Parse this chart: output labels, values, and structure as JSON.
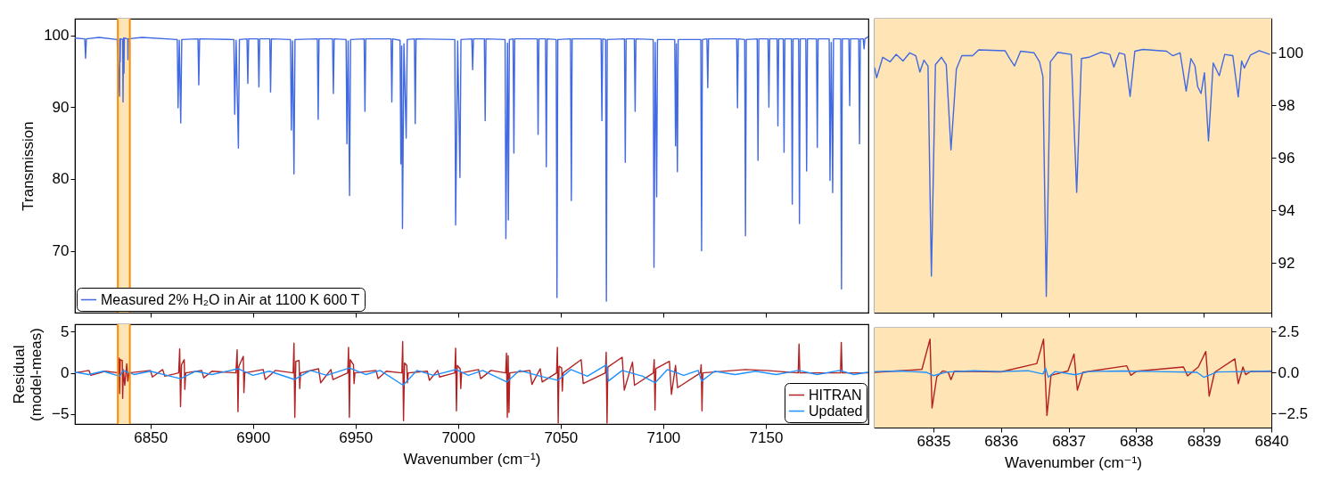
{
  "chart_data": [
    {
      "type": "line",
      "ylabel": "Transmission",
      "xlim": [
        6813.2,
        7200
      ],
      "ylim": [
        61.4,
        102.3
      ],
      "xticks": [
        6850,
        6900,
        6950,
        7000,
        7050,
        7100,
        7150
      ],
      "yticks": [
        70,
        80,
        90,
        100
      ],
      "tick_labels": "y",
      "legend": "bottom left",
      "bands": [
        {
          "axis": "x",
          "from": 6834.13,
          "to": 6840,
          "color": "#ffe4b5"
        }
      ],
      "ref_lines": [
        {
          "axis": "x",
          "value": 6834.13,
          "color": "#ff8c00"
        },
        {
          "axis": "x",
          "value": 6840,
          "color": "#ff8c00"
        }
      ],
      "series": [
        {
          "name": "Measured 2% H₂O in Air at 1100 K 600 T",
          "color": "#4169e1",
          "x": [
            6813.2,
            6818.0,
            6818.4,
            6818.8,
            6825.0,
            6833.8,
            6834.97,
            6835.1,
            6835.26,
            6835.4,
            6836.5,
            6836.67,
            6836.9,
            6837.12,
            6837.3,
            6839.0,
            6839.07,
            6839.2,
            6846.0,
            6863.1,
            6863.5,
            6864.1,
            6864.8,
            6865.3,
            6873.2,
            6873.6,
            6874.0,
            6890.7,
            6891.1,
            6891.8,
            6892.9,
            6893.4,
            6897.1,
            6897.5,
            6897.9,
            6902.5,
            6902.9,
            6903.3,
            6908.2,
            6908.6,
            6909.0,
            6918.3,
            6918.7,
            6919.3,
            6920.0,
            6920.5,
            6931.4,
            6931.8,
            6932.2,
            6938.8,
            6939.2,
            6939.6,
            6945.4,
            6945.8,
            6946.4,
            6947.1,
            6947.6,
            6954.2,
            6954.6,
            6955.0,
            6967.3,
            6967.7,
            6968.1,
            6971.7,
            6972.1,
            6972.5,
            6972.9,
            6973.6,
            6974.7,
            6975.2,
            6978.7,
            6979.1,
            6979.5,
            6998.4,
            6998.8,
            6999.8,
            7000.9,
            7001.4,
            7006.7,
            7007.1,
            7007.5,
            7012.8,
            7013.2,
            7013.6,
            7022.9,
            7023.3,
            7024.1,
            7024.5,
            7025.0,
            7026.8,
            7027.2,
            7027.6,
            7038.6,
            7039.0,
            7039.4,
            7042.6,
            7043.0,
            7043.4,
            7047.8,
            7048.2,
            7048.6,
            7054.8,
            7055.2,
            7055.6,
            7069.7,
            7070.1,
            7070.5,
            7071.9,
            7072.3,
            7072.7,
            7081.1,
            7081.5,
            7081.9,
            7085.9,
            7086.3,
            7086.7,
            7095.1,
            7095.5,
            7096.1,
            7096.8,
            7097.2,
            7105.6,
            7106.0,
            7106.4,
            7106.9,
            7107.3,
            7118.3,
            7118.7,
            7119.1,
            7121.3,
            7121.7,
            7122.1,
            7135.8,
            7136.2,
            7136.6,
            7139.7,
            7140.1,
            7140.5,
            7145.8,
            7146.2,
            7146.6,
            7151.1,
            7151.5,
            7151.9,
            7155.5,
            7155.9,
            7156.3,
            7158.5,
            7158.9,
            7159.3,
            7162.5,
            7162.9,
            7163.3,
            7166.0,
            7166.4,
            7166.8,
            7169.5,
            7169.9,
            7170.3,
            7174.7,
            7175.1,
            7175.5,
            7180.9,
            7181.3,
            7181.9,
            7182.6,
            7183.0,
            7186.5,
            7186.9,
            7187.3,
            7190.5,
            7190.9,
            7191.3,
            7195.3,
            7195.7,
            7196.1,
            7197.5,
            7197.9,
            7198.3,
            7200.0
          ],
          "values": [
            99.6,
            99.5,
            96.8,
            99.5,
            99.7,
            99.4,
            91.5,
            99.5,
            96.3,
            99.5,
            99.4,
            90.7,
            99.6,
            94.7,
            99.6,
            99.5,
            96.6,
            99.5,
            99.7,
            99.4,
            89.9,
            99.3,
            87.8,
            99.4,
            99.5,
            93.1,
            99.5,
            99.4,
            89.0,
            99.3,
            84.3,
            99.4,
            99.5,
            93.3,
            99.5,
            99.5,
            92.8,
            99.5,
            99.5,
            92.1,
            99.5,
            99.4,
            86.8,
            99.2,
            80.7,
            99.4,
            99.5,
            88.3,
            99.5,
            99.5,
            91.9,
            99.5,
            99.4,
            84.9,
            99.2,
            77.7,
            99.4,
            99.5,
            89.4,
            99.5,
            99.5,
            90.7,
            99.5,
            99.3,
            82.1,
            98.5,
            73.1,
            98.8,
            85.7,
            99.4,
            99.5,
            87.7,
            99.5,
            99.4,
            73.6,
            99.2,
            80.2,
            99.4,
            99.5,
            95.2,
            99.5,
            99.5,
            88.1,
            99.5,
            99.4,
            71.7,
            98.9,
            74.3,
            99.4,
            99.5,
            83.6,
            99.5,
            99.5,
            86.2,
            99.5,
            99.5,
            81.7,
            99.5,
            99.4,
            63.5,
            99.4,
            99.5,
            77.0,
            99.5,
            99.5,
            88.1,
            99.5,
            99.4,
            63.0,
            99.4,
            99.5,
            82.3,
            99.5,
            99.5,
            89.4,
            99.5,
            99.4,
            67.7,
            99.0,
            77.5,
            99.4,
            99.4,
            84.6,
            98.8,
            81.0,
            99.4,
            99.4,
            70.0,
            99.4,
            99.5,
            92.7,
            99.5,
            99.5,
            89.9,
            99.5,
            99.4,
            72.1,
            99.4,
            99.5,
            82.6,
            99.5,
            99.5,
            90.0,
            99.5,
            99.5,
            87.4,
            99.5,
            99.5,
            83.7,
            99.5,
            99.5,
            76.5,
            99.5,
            99.5,
            73.8,
            99.5,
            99.5,
            81.1,
            99.5,
            99.5,
            84.4,
            99.5,
            99.5,
            79.8,
            99.0,
            78.1,
            99.5,
            99.5,
            64.7,
            99.5,
            99.5,
            90.2,
            99.5,
            99.5,
            84.9,
            99.5,
            99.5,
            98.1,
            99.5,
            99.8
          ]
        }
      ]
    },
    {
      "type": "line",
      "xlim": [
        6834.13,
        6840
      ],
      "y2lim": [
        90.1,
        101.3
      ],
      "xticks": [
        6835,
        6836,
        6837,
        6838,
        6839,
        6840
      ],
      "y2ticks": [
        92,
        94,
        96,
        98,
        100
      ],
      "tick_labels": "y",
      "bands": [
        {
          "axis": "x",
          "from": 6834.13,
          "to": 6840,
          "color": "#ffe4b5"
        }
      ],
      "series": [
        {
          "color": "#4169e1",
          "axis": "y2",
          "x": [
            6834.13,
            6834.16,
            6834.25,
            6834.36,
            6834.45,
            6834.55,
            6834.65,
            6834.74,
            6834.8,
            6834.86,
            6834.92,
            6834.97,
            6835.03,
            6835.12,
            6835.19,
            6835.26,
            6835.34,
            6835.42,
            6835.58,
            6835.67,
            6836.06,
            6836.13,
            6836.2,
            6836.29,
            6836.49,
            6836.57,
            6836.62,
            6836.67,
            6836.73,
            6836.84,
            6837.04,
            6837.12,
            6837.19,
            6837.3,
            6837.48,
            6837.61,
            6837.67,
            6837.75,
            6837.83,
            6837.91,
            6837.98,
            6838.1,
            6838.45,
            6838.54,
            6838.65,
            6838.74,
            6838.81,
            6838.87,
            6838.91,
            6838.96,
            6839.01,
            6839.07,
            6839.14,
            6839.23,
            6839.31,
            6839.43,
            6839.51,
            6839.56,
            6839.6,
            6839.69,
            6839.82,
            6839.98
          ],
          "values": [
            99.44,
            99.05,
            99.83,
            99.66,
            99.94,
            99.69,
            100.0,
            99.89,
            99.27,
            99.72,
            99.5,
            91.49,
            99.55,
            99.83,
            99.55,
            96.3,
            99.38,
            99.89,
            99.89,
            100.11,
            100.08,
            99.78,
            99.5,
            100.06,
            100.0,
            99.66,
            99.1,
            90.72,
            99.66,
            100.02,
            99.94,
            94.68,
            99.78,
            99.83,
            100.02,
            99.94,
            99.46,
            100.0,
            99.94,
            98.34,
            100.06,
            100.13,
            100.06,
            99.89,
            100.0,
            98.54,
            99.78,
            99.5,
            98.71,
            98.45,
            99.24,
            96.64,
            99.61,
            99.13,
            99.94,
            99.89,
            98.32,
            99.69,
            99.42,
            99.91,
            100.08,
            99.94
          ]
        }
      ]
    },
    {
      "type": "line",
      "xlabel": "Wavenumber (cm⁻¹)",
      "ylabel": "Residual\n(model-meas)",
      "xlim": [
        6813.2,
        7200
      ],
      "ylim": [
        -6.2,
        5.9
      ],
      "xticks": [
        6850,
        6900,
        6950,
        7000,
        7050,
        7100,
        7150
      ],
      "yticks": [
        {
          "value": -5,
          "label": "−5"
        },
        0,
        5
      ],
      "legend": "bottom right",
      "bands": [
        {
          "axis": "x",
          "from": 6834.13,
          "to": 6840,
          "color": "#ffe4b5"
        }
      ],
      "ref_lines": [
        {
          "axis": "x",
          "value": 6834.13,
          "color": "#ff8c00"
        },
        {
          "axis": "x",
          "value": 6840,
          "color": "#ff8c00"
        }
      ],
      "series": [
        {
          "name": "HITRAN",
          "color": "#b22222",
          "x": [
            6813.2,
            6820,
            6821,
            6828,
            6834.6,
            6834.8,
            6835.0,
            6835.3,
            6836.3,
            6836.5,
            6836.8,
            6837.5,
            6838.5,
            6839.0,
            6839.6,
            6850,
            6851,
            6856,
            6857,
            6863.8,
            6864.3,
            6864.7,
            6865.2,
            6866.5,
            6866.8,
            6867.2,
            6875,
            6876,
            6880,
            6891.7,
            6892.3,
            6892.7,
            6893.1,
            6895.3,
            6895.6,
            6896.0,
            6905,
            6906,
            6911,
            6919.6,
            6920.0,
            6920.4,
            6920.9,
            6922.5,
            6922.8,
            6923.2,
            6932,
            6933,
            6938,
            6939,
            6946.2,
            6946.6,
            6947.0,
            6947.4,
            6949,
            6949.3,
            6949.7,
            6960,
            6961,
            6965,
            6972.6,
            6973.0,
            6973.4,
            6973.9,
            6975,
            6975.3,
            6975.7,
            6985,
            6986,
            6990,
            6991,
            6998.4,
            6998.8,
            6999.2,
            6999.6,
            7001,
            7001.3,
            7001.7,
            7010,
            7011,
            7016,
            7023.2,
            7023.6,
            7024.0,
            7024.4,
            7024.8,
            7025.2,
            7035,
            7036,
            7040,
            7041,
            7048.0,
            7048.4,
            7048.8,
            7049.2,
            7050.5,
            7050.8,
            7051.2,
            7060,
            7061,
            7071.8,
            7072.2,
            7072.6,
            7073.0,
            7080,
            7081,
            7085,
            7086,
            7095.2,
            7095.6,
            7096.0,
            7096.4,
            7103,
            7104,
            7106,
            7107,
            7118.1,
            7118.5,
            7118.9,
            7119.3,
            7140,
            7150,
            7165.8,
            7166.2,
            7166.6,
            7186.4,
            7186.8,
            7187.2,
            7200
          ],
          "values": [
            0,
            0.3,
            -0.3,
            0.2,
            0,
            1.8,
            -2.5,
            1.6,
            1.5,
            -3.1,
            0.4,
            -1.5,
            1.1,
            -1.0,
            0,
            0.3,
            -0.5,
            0.4,
            -0.4,
            0,
            2.9,
            -4.1,
            1.0,
            1.6,
            -2.0,
            0,
            0.3,
            -0.6,
            0.2,
            0,
            2.8,
            -4.7,
            0.8,
            2.0,
            -2.4,
            0,
            0.4,
            -0.8,
            0.3,
            0,
            3.6,
            -5.4,
            1.4,
            1.5,
            -1.9,
            0,
            0.5,
            -1.2,
            0.4,
            -0.8,
            0,
            3.1,
            -5.4,
            1.6,
            1.0,
            -1.3,
            0,
            0.3,
            -0.7,
            0.2,
            0,
            3.8,
            -5.8,
            1.2,
            0.9,
            -1.2,
            0,
            0.2,
            -0.9,
            0.3,
            -0.5,
            0,
            3.0,
            -4.6,
            0.9,
            0.5,
            -1.9,
            0,
            0.4,
            -0.7,
            0.3,
            0,
            2.4,
            -5.4,
            2.1,
            -4.8,
            0,
            0.3,
            -1.4,
            0.5,
            -1.1,
            0,
            3.1,
            -6.1,
            0.8,
            0.6,
            -2.2,
            0,
            1.6,
            -1.3,
            0,
            2.5,
            -6.1,
            0.7,
            1.9,
            -2.1,
            1.3,
            -1.5,
            0,
            1.6,
            -4.5,
            0.5,
            1.4,
            -2.6,
            0.9,
            -1.8,
            0,
            1.0,
            -4.6,
            0,
            0.4,
            0.3,
            0,
            3.5,
            0,
            0,
            3.7,
            0,
            0
          ]
        },
        {
          "name": "Updated",
          "color": "#1e90ff",
          "x": [
            6813.2,
            6820,
            6827,
            6835,
            6836.7,
            6842,
            6850,
            6858,
            6864.7,
            6872,
            6880,
            6892.7,
            6900,
            6908,
            6920.2,
            6928,
            6936,
            6947,
            6955,
            6962,
            6973.2,
            6980,
            6988,
            6999,
            7005,
            7012,
            7023.8,
            7030,
            7040,
            7048.6,
            7055,
            7063,
            7072.4,
            7073.2,
            7080,
            7090,
            7096,
            7102,
            7110,
            7117,
            7118.7,
            7125,
            7135,
            7145,
            7155,
            7166,
            7175,
            7186,
            7193,
            7200
          ],
          "values": [
            0.1,
            -0.2,
            0.2,
            -0.4,
            0.3,
            -0.2,
            0.2,
            -0.3,
            -0.7,
            0.2,
            -0.2,
            0.5,
            -0.3,
            0.2,
            -0.8,
            0.3,
            -0.3,
            0.6,
            -0.2,
            0.3,
            -1.5,
            0.3,
            -0.3,
            0.4,
            -0.3,
            0.3,
            -1.1,
            0.3,
            -0.4,
            -0.9,
            0.4,
            -0.4,
            1.0,
            -1.0,
            0.3,
            -0.4,
            -1.2,
            0.4,
            -0.3,
            0.3,
            -1.0,
            0.2,
            -0.2,
            0.2,
            -0.2,
            0.3,
            -0.2,
            0.3,
            -0.2,
            0.1
          ]
        }
      ]
    },
    {
      "type": "line",
      "xlabel": "Wavenumber (cm⁻¹)",
      "xlim": [
        6834.13,
        6840
      ],
      "y2lim": [
        -3.37,
        2.72
      ],
      "xticks": [
        6835,
        6836,
        6837,
        6838,
        6839,
        6840
      ],
      "y2ticks": [
        {
          "value": -2.5,
          "label": "−2.5"
        },
        {
          "value": 0,
          "label": "0.0"
        },
        2.5
      ],
      "bands": [
        {
          "axis": "x",
          "from": 6834.13,
          "to": 6840,
          "color": "#ffe4b5"
        }
      ],
      "series": [
        {
          "color": "#b22222",
          "axis": "y2",
          "x": [
            6834.13,
            6834.83,
            6834.95,
            6834.98,
            6835.05,
            6835.14,
            6835.22,
            6835.26,
            6835.31,
            6836.0,
            6836.53,
            6836.63,
            6836.68,
            6836.74,
            6836.99,
            6837.08,
            6837.13,
            6837.21,
            6837.86,
            6837.92,
            6838.01,
            6838.7,
            6838.76,
            6838.92,
            6839.03,
            6839.08,
            6839.16,
            6839.46,
            6839.51,
            6839.58,
            6839.62,
            6839.7,
            6840.0
          ],
          "values": [
            0,
            0.18,
            2.03,
            -2.17,
            -0.27,
            0.09,
            0,
            -0.45,
            0.07,
            0.03,
            0.54,
            2.03,
            -2.63,
            -0.18,
            0.08,
            1.12,
            -1.09,
            0,
            0.4,
            -0.18,
            0.07,
            0.33,
            -0.22,
            0.33,
            1.27,
            -1.45,
            0,
            0.82,
            -0.69,
            0.33,
            -0.14,
            0.07,
            0.05
          ]
        },
        {
          "color": "#1e90ff",
          "axis": "y2",
          "x": [
            6834.13,
            6834.5,
            6834.9,
            6835.0,
            6835.2,
            6835.6,
            6836.0,
            6836.4,
            6836.62,
            6836.66,
            6836.7,
            6836.8,
            6837.1,
            6837.3,
            6837.8,
            6838.3,
            6838.9,
            6839.0,
            6839.2,
            6839.6,
            6840.0
          ],
          "values": [
            0.05,
            0.08,
            0.0,
            -0.2,
            0.02,
            0.1,
            0.05,
            0.1,
            -0.1,
            0.25,
            -0.3,
            0.05,
            -0.15,
            0.05,
            0.08,
            0.05,
            0.0,
            -0.3,
            0.02,
            0.05,
            0.08
          ]
        }
      ]
    }
  ]
}
